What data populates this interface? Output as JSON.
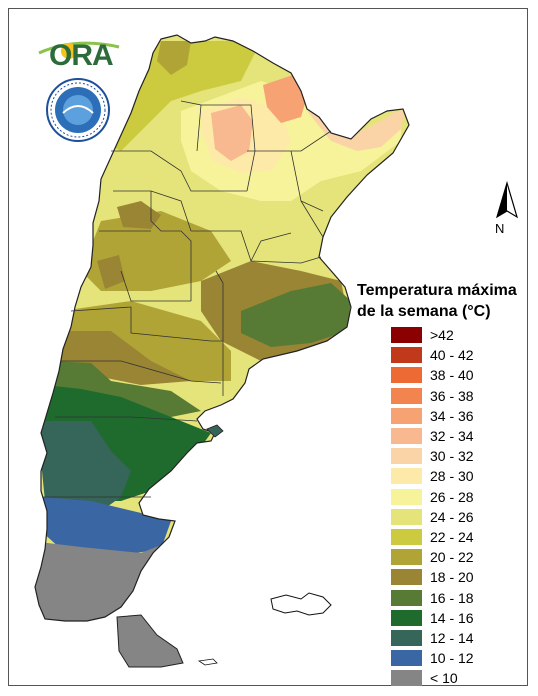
{
  "header": {
    "logo_text": "ORA",
    "seal_name": "Servicio Meteorologico Nacional seal"
  },
  "compass": {
    "label": "N"
  },
  "legend": {
    "title_line1": "Temperatura máxima",
    "title_line2": "de la semana (°C)",
    "items": [
      {
        "label": ">42",
        "color": "#8b0000"
      },
      {
        "label": "40 - 42",
        "color": "#c0391b"
      },
      {
        "label": "38 - 40",
        "color": "#ee6a34"
      },
      {
        "label": "36 - 38",
        "color": "#f2854f"
      },
      {
        "label": "34 - 36",
        "color": "#f6a273"
      },
      {
        "label": "32 - 34",
        "color": "#f8b990"
      },
      {
        "label": "30 - 32",
        "color": "#fad3a6"
      },
      {
        "label": "28 - 30",
        "color": "#fdeaa8"
      },
      {
        "label": "26 - 28",
        "color": "#f7f39a"
      },
      {
        "label": "24 - 26",
        "color": "#e4e47a"
      },
      {
        "label": "22 - 24",
        "color": "#ccca3f"
      },
      {
        "label": "20 - 22",
        "color": "#b1a437"
      },
      {
        "label": "18 - 20",
        "color": "#9a8534"
      },
      {
        "label": "16 - 18",
        "color": "#577b34"
      },
      {
        "label": "14 - 16",
        "color": "#1f6b2e"
      },
      {
        "label": "12 - 14",
        "color": "#356659"
      },
      {
        "label": "10 - 12",
        "color": "#3a67a3"
      },
      {
        "label": "< 10",
        "color": "#858585"
      }
    ]
  }
}
